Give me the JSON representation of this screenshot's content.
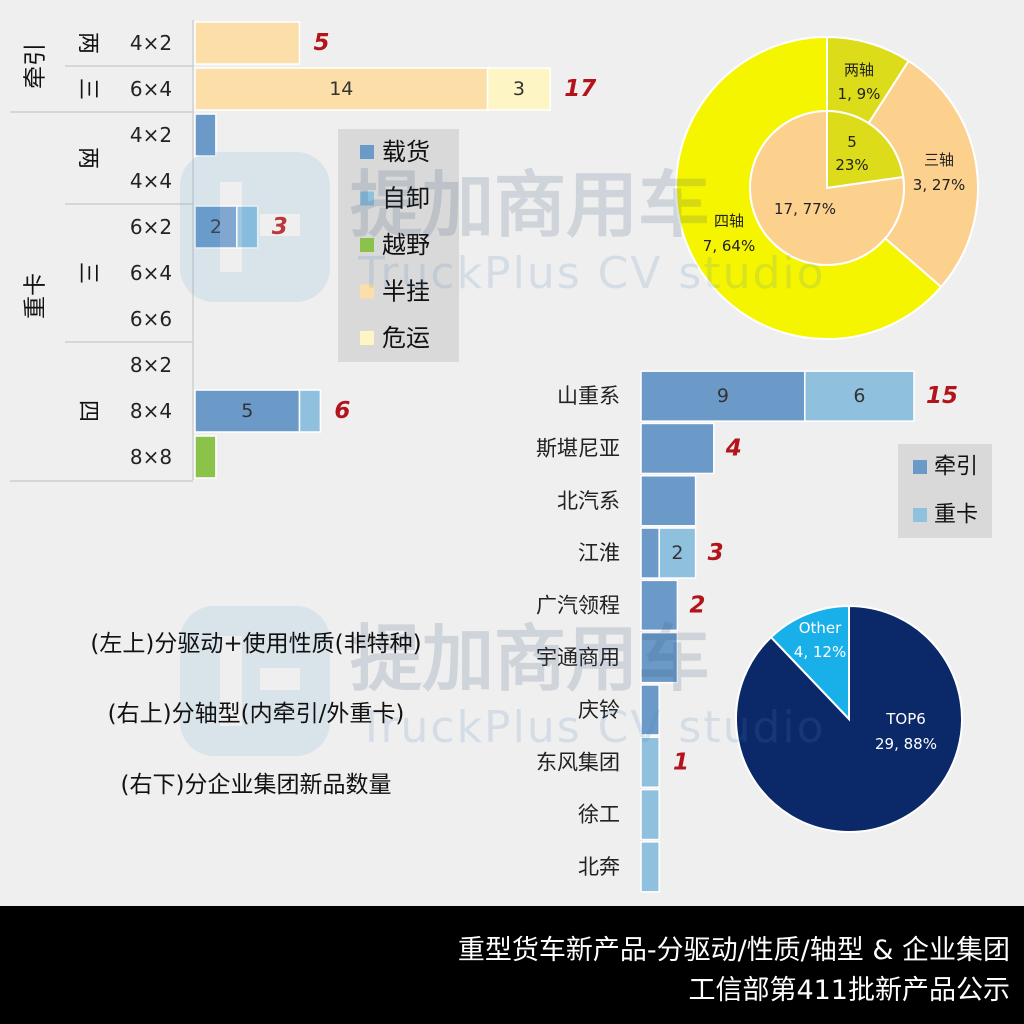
{
  "watermark": {
    "brand_cn": "提加商用车",
    "brand_en": "TruckPlus CV studio"
  },
  "captions": [
    "(左上)分驱动+使用性质(非特种)",
    "(右上)分轴型(内牵引/外重卡)",
    "(右下)分企业集团新品数量"
  ],
  "footer": {
    "line1": "重型货车新产品-分驱动/性质/轴型 & 企业集团",
    "line2": "工信部第411批新产品公示"
  },
  "colors": {
    "载货": "#6b9ac9",
    "自卸": "#8fc1de",
    "越野": "#8bc34a",
    "半挂": "#fcdfa8",
    "危运": "#fdf6c4",
    "牵引": "#6b9ac9",
    "重卡": "#8fc1de",
    "total_label": "#b3141b",
    "outer_ring": "#f5f500",
    "inner_3axle": "#fcd18e",
    "inner_2axle": "#dcdc1a",
    "top6": "#0b2868",
    "other": "#19b0ea"
  },
  "chart_data": [
    {
      "type": "bar",
      "orientation": "horizontal",
      "stacked": true,
      "groups": [
        {
          "label": "牵引",
          "axles": [
            {
              "label": "两",
              "rows": [
                "4×2"
              ]
            },
            {
              "label": "三",
              "rows": [
                "6×4"
              ]
            }
          ]
        },
        {
          "label": "重卡",
          "axles": [
            {
              "label": "两",
              "rows": [
                "4×2",
                "4×4"
              ]
            },
            {
              "label": "三",
              "rows": [
                "6×2",
                "6×4",
                "6×6"
              ]
            },
            {
              "label": "四",
              "rows": [
                "8×2",
                "8×4",
                "8×8"
              ]
            }
          ]
        }
      ],
      "categories": [
        "牵引|两|4×2",
        "牵引|三|6×4",
        "重卡|两|4×2",
        "重卡|两|4×4",
        "重卡|三|6×2",
        "重卡|三|6×4",
        "重卡|三|6×6",
        "重卡|四|8×2",
        "重卡|四|8×4",
        "重卡|四|8×8"
      ],
      "series": [
        {
          "name": "载货",
          "values": [
            0,
            0,
            1,
            0,
            2,
            0,
            0,
            0,
            5,
            0
          ]
        },
        {
          "name": "自卸",
          "values": [
            0,
            0,
            0,
            0,
            1,
            0,
            0,
            0,
            1,
            0
          ]
        },
        {
          "name": "越野",
          "values": [
            0,
            0,
            0,
            0,
            0,
            0,
            0,
            0,
            0,
            1
          ]
        },
        {
          "name": "半挂",
          "values": [
            5,
            14,
            0,
            0,
            0,
            0,
            0,
            0,
            0,
            0
          ]
        },
        {
          "name": "危运",
          "values": [
            0,
            3,
            0,
            0,
            0,
            0,
            0,
            0,
            0,
            0
          ]
        }
      ],
      "segment_labels": [
        [],
        [
          "14",
          "3"
        ],
        [],
        [],
        [
          "2"
        ],
        [],
        [],
        [],
        [
          "5"
        ],
        []
      ],
      "totals": [
        "5",
        "17",
        "",
        "",
        "3",
        "",
        "",
        "",
        "6",
        ""
      ],
      "legend": [
        "载货",
        "自卸",
        "越野",
        "半挂",
        "危运"
      ],
      "legend_placement": "center"
    },
    {
      "type": "pie",
      "style": "double-ring",
      "inner": [
        {
          "label": "5",
          "value": 5,
          "percent": "23%"
        },
        {
          "label": "17",
          "value": 17,
          "percent": "77%"
        }
      ],
      "outer": [
        {
          "label": "两轴",
          "value": 1,
          "percent": "9%"
        },
        {
          "label": "三轴",
          "value": 3,
          "percent": "27%"
        },
        {
          "label": "四轴",
          "value": 7,
          "percent": "64%"
        }
      ]
    },
    {
      "type": "bar",
      "orientation": "horizontal",
      "stacked": true,
      "categories": [
        "山重系",
        "斯堪尼亚",
        "北汽系",
        "江淮",
        "广汽领程",
        "宇通商用",
        "庆铃",
        "东风集团",
        "徐工",
        "北奔"
      ],
      "series": [
        {
          "name": "牵引",
          "values": [
            9,
            4,
            3,
            1,
            2,
            2,
            1,
            0,
            0,
            0
          ]
        },
        {
          "name": "重卡",
          "values": [
            6,
            0,
            0,
            2,
            0,
            0,
            0,
            1,
            1,
            1
          ]
        }
      ],
      "segment_labels": [
        [
          "9",
          "6"
        ],
        [],
        [],
        [
          "",
          "2"
        ],
        [],
        [],
        [],
        [],
        [],
        []
      ],
      "totals": [
        "15",
        "4",
        "",
        "3",
        "2",
        "",
        "",
        "1",
        "",
        ""
      ],
      "legend": [
        "牵引",
        "重卡"
      ],
      "legend_placement": "right"
    },
    {
      "type": "pie",
      "slices": [
        {
          "label": "TOP6",
          "value": 29,
          "percent": "88%"
        },
        {
          "label": "Other",
          "value": 4,
          "percent": "12%"
        }
      ]
    }
  ]
}
